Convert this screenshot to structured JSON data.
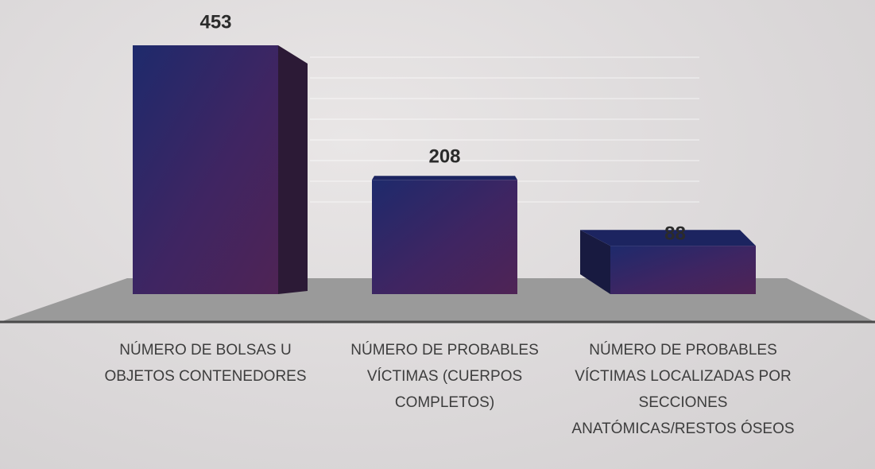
{
  "chart_data": {
    "type": "bar",
    "categories": [
      "NÚMERO DE BOLSAS U OBJETOS CONTENEDORES",
      "NÚMERO DE PROBABLES VÍCTIMAS (CUERPOS COMPLETOS)",
      "NÚMERO DE PROBABLES VÍCTIMAS LOCALIZADAS POR SECCIONES ANATÓMICAS/RESTOS ÓSEOS"
    ],
    "values": [
      453,
      208,
      88
    ],
    "color": "#3a2560"
  }
}
